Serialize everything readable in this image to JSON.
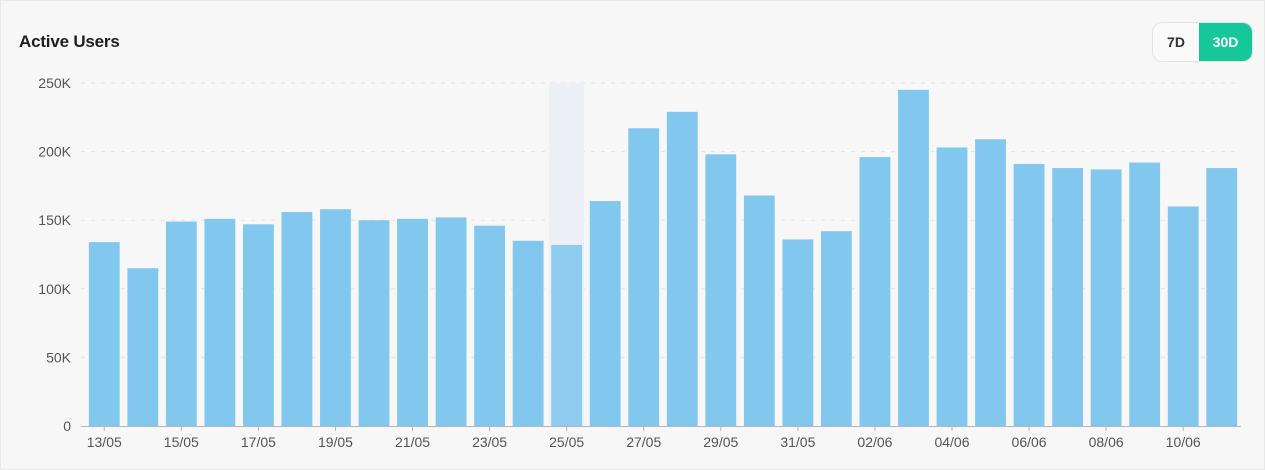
{
  "header": {
    "title": "Active Users"
  },
  "range_toggle": {
    "options": [
      "7D",
      "30D"
    ],
    "selected": "30D"
  },
  "colors": {
    "bar": "#82c8ee",
    "bar_highlight": "#8fcbef",
    "hover_band": "#eceff5",
    "accent": "#16c79a",
    "grid": "#e2e2e2",
    "axis": "#b5b5b5"
  },
  "chart_data": {
    "type": "bar",
    "title": "Active Users",
    "xlabel": "",
    "ylabel": "",
    "ylim": [
      0,
      250000
    ],
    "yticks": [
      0,
      50000,
      100000,
      150000,
      200000,
      250000
    ],
    "ytick_labels": [
      "0",
      "50K",
      "100K",
      "150K",
      "200K",
      "250K"
    ],
    "grid": true,
    "highlighted_index": 12,
    "categories": [
      "13/05",
      "14/05",
      "15/05",
      "16/05",
      "17/05",
      "18/05",
      "19/05",
      "20/05",
      "21/05",
      "22/05",
      "23/05",
      "24/05",
      "25/05",
      "26/05",
      "27/05",
      "28/05",
      "29/05",
      "30/05",
      "31/05",
      "01/06",
      "02/06",
      "03/06",
      "04/06",
      "05/06",
      "06/06",
      "07/06",
      "08/06",
      "09/06",
      "10/06",
      "11/06"
    ],
    "xtick_labels": [
      "13/05",
      "15/05",
      "17/05",
      "19/05",
      "21/05",
      "23/05",
      "25/05",
      "27/05",
      "29/05",
      "31/05",
      "02/06",
      "04/06",
      "06/06",
      "08/06",
      "10/06"
    ],
    "values": [
      134000,
      115000,
      149000,
      151000,
      147000,
      156000,
      158000,
      150000,
      151000,
      152000,
      146000,
      135000,
      132000,
      164000,
      217000,
      229000,
      198000,
      168000,
      136000,
      142000,
      196000,
      245000,
      203000,
      209000,
      191000,
      188000,
      187000,
      192000,
      160000,
      188000
    ]
  }
}
